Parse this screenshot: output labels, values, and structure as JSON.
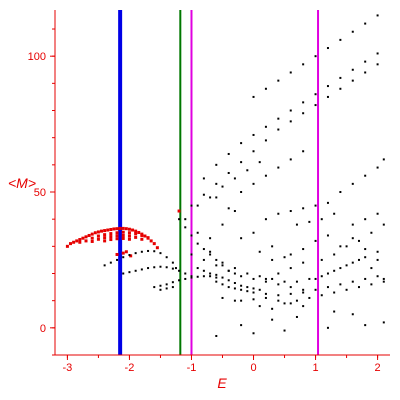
{
  "chart_data": {
    "type": "scatter",
    "xlabel": "E",
    "ylabel": "<M>",
    "xlim": [
      -3.2,
      2.2
    ],
    "ylim": [
      -10,
      117
    ],
    "x_ticks": [
      -3,
      -2,
      -1,
      0,
      1,
      2
    ],
    "y_ticks": [
      0,
      50,
      100
    ],
    "colors": {
      "axis": "#e60000",
      "black_series": "#000000",
      "red_series": "#e60000",
      "blue_line": "#0000e6",
      "green_line": "#007700",
      "magenta_line": "#e000e0"
    },
    "vertical_lines": [
      {
        "x": -2.15,
        "color": "#0000e6",
        "width": 4
      },
      {
        "x": -1.18,
        "color": "#007700",
        "width": 2
      },
      {
        "x": -1.0,
        "color": "#e000e0",
        "width": 2
      },
      {
        "x": 1.04,
        "color": "#e000e0",
        "width": 2
      }
    ],
    "series": [
      {
        "color": "#e60000",
        "points": [
          [
            -3.0,
            30
          ],
          [
            -2.95,
            31
          ],
          [
            -2.9,
            31.5
          ],
          [
            -2.85,
            32
          ],
          [
            -2.8,
            32.5
          ],
          [
            -2.75,
            33
          ],
          [
            -2.7,
            33.5
          ],
          [
            -2.65,
            34
          ],
          [
            -2.6,
            34.5
          ],
          [
            -2.55,
            35
          ],
          [
            -2.5,
            35.3
          ],
          [
            -2.45,
            35.6
          ],
          [
            -2.4,
            35.8
          ],
          [
            -2.35,
            36
          ],
          [
            -2.3,
            36.2
          ],
          [
            -2.25,
            36.4
          ],
          [
            -2.2,
            36.5
          ],
          [
            -2.15,
            36.6
          ],
          [
            -2.1,
            36.6
          ],
          [
            -2.05,
            36.5
          ],
          [
            -2.0,
            36.3
          ],
          [
            -1.95,
            36
          ],
          [
            -1.9,
            35.6
          ],
          [
            -1.85,
            35.1
          ],
          [
            -1.8,
            34.5
          ],
          [
            -1.75,
            33.8
          ],
          [
            -1.7,
            33
          ],
          [
            -1.65,
            32
          ],
          [
            -1.6,
            31
          ],
          [
            -1.55,
            29.5
          ],
          [
            -2.8,
            31.5
          ],
          [
            -2.7,
            32
          ],
          [
            -2.6,
            33
          ],
          [
            -2.5,
            33.8
          ],
          [
            -2.4,
            34.3
          ],
          [
            -2.3,
            34.7
          ],
          [
            -2.2,
            35
          ],
          [
            -2.1,
            35.2
          ],
          [
            -2.0,
            35
          ],
          [
            -1.9,
            34.6
          ],
          [
            -1.8,
            34
          ],
          [
            -1.7,
            33.2
          ],
          [
            -2.6,
            31.8
          ],
          [
            -2.5,
            32.6
          ],
          [
            -2.4,
            33.2
          ],
          [
            -2.3,
            33.6
          ],
          [
            -2.2,
            33.9
          ],
          [
            -2.1,
            34
          ],
          [
            -2.0,
            33.8
          ],
          [
            -1.9,
            33.3
          ],
          [
            -1.8,
            32.6
          ],
          [
            -2.4,
            32
          ],
          [
            -2.3,
            32.5
          ],
          [
            -2.2,
            32.8
          ],
          [
            -2.1,
            32.9
          ],
          [
            -2.0,
            32.6
          ],
          [
            -2.1,
            27.5
          ],
          [
            -2.05,
            28
          ],
          [
            -2.2,
            27
          ],
          [
            -1.98,
            26.5
          ],
          [
            -1.2,
            43
          ]
        ]
      },
      {
        "color": "#000000",
        "points": [
          [
            -2.4,
            23
          ],
          [
            -2.3,
            24
          ],
          [
            -2.2,
            25
          ],
          [
            -2.1,
            26
          ],
          [
            -2.0,
            26.8
          ],
          [
            -1.9,
            27.5
          ],
          [
            -1.8,
            28
          ],
          [
            -1.7,
            28.3
          ],
          [
            -1.6,
            28.2
          ],
          [
            -1.5,
            27.5
          ],
          [
            -1.4,
            26
          ],
          [
            -1.3,
            24
          ],
          [
            -1.25,
            22
          ],
          [
            -2.1,
            20
          ],
          [
            -2.0,
            20.5
          ],
          [
            -1.9,
            21
          ],
          [
            -1.8,
            21.5
          ],
          [
            -1.7,
            22
          ],
          [
            -1.6,
            22.3
          ],
          [
            -1.5,
            22.5
          ],
          [
            -1.4,
            22.3
          ],
          [
            -1.3,
            21.8
          ],
          [
            -1.2,
            21
          ],
          [
            -1.1,
            20
          ],
          [
            -1.0,
            19
          ],
          [
            -1.6,
            15
          ],
          [
            -1.5,
            15.5
          ],
          [
            -1.4,
            16
          ],
          [
            -1.3,
            16.8
          ],
          [
            -1.2,
            17.5
          ],
          [
            -1.1,
            18
          ],
          [
            -1.0,
            18.5
          ],
          [
            -0.9,
            18.8
          ],
          [
            -0.8,
            19
          ],
          [
            -0.7,
            19
          ],
          [
            -0.6,
            18.5
          ],
          [
            -1.5,
            14
          ],
          [
            -1.4,
            14.5
          ],
          [
            -1.3,
            15
          ],
          [
            -0.9,
            22
          ],
          [
            -0.8,
            21
          ],
          [
            -0.7,
            20
          ],
          [
            -0.6,
            19.5
          ],
          [
            -0.5,
            18.5
          ],
          [
            -0.4,
            17.5
          ],
          [
            -0.3,
            16.5
          ],
          [
            -0.2,
            15.5
          ],
          [
            -0.1,
            15
          ],
          [
            0.0,
            14.5
          ],
          [
            0.1,
            14
          ],
          [
            -0.6,
            17
          ],
          [
            -0.5,
            16
          ],
          [
            -0.4,
            15
          ],
          [
            -0.3,
            14.5
          ],
          [
            -0.2,
            14
          ],
          [
            -0.1,
            13.5
          ],
          [
            0.0,
            13
          ],
          [
            0.2,
            12.5
          ],
          [
            0.4,
            12
          ],
          [
            0.6,
            12.5
          ],
          [
            0.8,
            13
          ],
          [
            -0.2,
            10
          ],
          [
            0.0,
            10.5
          ],
          [
            0.2,
            11
          ],
          [
            0.4,
            10
          ],
          [
            0.6,
            9
          ],
          [
            0.8,
            8
          ],
          [
            -0.5,
            11
          ],
          [
            -0.3,
            10
          ],
          [
            0.1,
            8
          ],
          [
            0.3,
            7
          ],
          [
            0.5,
            9
          ],
          [
            0.7,
            10
          ],
          [
            0.9,
            11
          ],
          [
            1.1,
            12
          ],
          [
            1.3,
            13
          ],
          [
            1.5,
            14
          ],
          [
            1.7,
            15
          ],
          [
            1.9,
            16
          ],
          [
            2.1,
            17
          ],
          [
            1.0,
            18
          ],
          [
            1.2,
            20
          ],
          [
            1.4,
            22
          ],
          [
            1.6,
            24
          ],
          [
            1.8,
            26
          ],
          [
            2.0,
            28
          ],
          [
            0.4,
            20
          ],
          [
            0.6,
            22
          ],
          [
            0.8,
            24
          ],
          [
            0.2,
            18
          ],
          [
            1.1,
            25
          ],
          [
            1.3,
            27
          ],
          [
            1.5,
            30
          ],
          [
            1.7,
            32
          ],
          [
            1.9,
            35
          ],
          [
            2.1,
            38
          ],
          [
            -0.6,
            -3
          ],
          [
            -0.2,
            1
          ],
          [
            0.3,
            3
          ],
          [
            0.7,
            4
          ],
          [
            1.3,
            6
          ],
          [
            1.6,
            5
          ],
          [
            2.1,
            2
          ],
          [
            0.0,
            -2
          ],
          [
            0.5,
            -1
          ],
          [
            1.2,
            0
          ],
          [
            1.8,
            1
          ],
          [
            -1.2,
            40
          ],
          [
            -1.1,
            37
          ],
          [
            -1.0,
            34
          ],
          [
            -0.9,
            31
          ],
          [
            -0.8,
            29
          ],
          [
            -0.7,
            27
          ],
          [
            -0.6,
            25
          ],
          [
            -0.5,
            23
          ],
          [
            -0.4,
            21
          ],
          [
            -0.3,
            20
          ],
          [
            -0.7,
            28
          ],
          [
            -0.5,
            24
          ],
          [
            -0.3,
            22
          ],
          [
            -0.1,
            20
          ],
          [
            0.1,
            19
          ],
          [
            0.3,
            18
          ],
          [
            0.5,
            17
          ],
          [
            0.7,
            17
          ],
          [
            0.9,
            18
          ],
          [
            1.1,
            19
          ],
          [
            1.3,
            21
          ],
          [
            1.5,
            23
          ],
          [
            1.7,
            25
          ],
          [
            1.9,
            22
          ],
          [
            2.1,
            18
          ],
          [
            1.4,
            30
          ],
          [
            1.6,
            33
          ],
          [
            1.8,
            29
          ],
          [
            2.0,
            25
          ],
          [
            1.2,
            34
          ],
          [
            1.0,
            32
          ],
          [
            0.8,
            29
          ],
          [
            0.6,
            27
          ],
          [
            1.6,
            38
          ],
          [
            1.8,
            40
          ],
          [
            2.0,
            42
          ],
          [
            -1.0,
            45
          ],
          [
            -0.8,
            49
          ],
          [
            -0.6,
            53
          ],
          [
            -0.4,
            57
          ],
          [
            -0.2,
            61
          ],
          [
            0.0,
            65
          ],
          [
            0.2,
            69
          ],
          [
            0.4,
            73
          ],
          [
            0.6,
            76
          ],
          [
            0.8,
            79
          ],
          [
            1.0,
            82
          ],
          [
            1.2,
            85
          ],
          [
            1.4,
            88
          ],
          [
            1.6,
            91
          ],
          [
            1.8,
            94
          ],
          [
            2.0,
            97
          ],
          [
            -1.1,
            40
          ],
          [
            -0.9,
            45
          ],
          [
            -0.7,
            48
          ],
          [
            -0.5,
            52
          ],
          [
            -0.3,
            55
          ],
          [
            -0.1,
            58
          ],
          [
            0.1,
            61
          ],
          [
            -0.6,
            60
          ],
          [
            -0.4,
            64
          ],
          [
            -0.2,
            68
          ],
          [
            0.0,
            71
          ],
          [
            0.2,
            74
          ],
          [
            0.4,
            77
          ],
          [
            0.6,
            80
          ],
          [
            0.8,
            83
          ],
          [
            1.0,
            86
          ],
          [
            1.2,
            89
          ],
          [
            1.4,
            92
          ],
          [
            1.6,
            95
          ],
          [
            1.8,
            98
          ],
          [
            2.0,
            101
          ],
          [
            0.0,
            85
          ],
          [
            0.2,
            88
          ],
          [
            0.4,
            91
          ],
          [
            0.6,
            94
          ],
          [
            0.8,
            97
          ],
          [
            1.0,
            100
          ],
          [
            1.2,
            103
          ],
          [
            1.4,
            106
          ],
          [
            1.6,
            109
          ],
          [
            1.8,
            112
          ],
          [
            2.0,
            115
          ],
          [
            -0.2,
            50
          ],
          [
            0.0,
            53
          ],
          [
            0.2,
            56
          ],
          [
            0.4,
            59
          ],
          [
            0.6,
            62
          ],
          [
            0.8,
            65
          ],
          [
            -0.4,
            44
          ],
          [
            0.2,
            40
          ],
          [
            0.4,
            42
          ],
          [
            0.6,
            43
          ],
          [
            0.8,
            44
          ],
          [
            1.0,
            45
          ],
          [
            1.2,
            46
          ],
          [
            1.4,
            50
          ],
          [
            1.6,
            53
          ],
          [
            1.8,
            56
          ],
          [
            2.0,
            59
          ],
          [
            2.1,
            62
          ],
          [
            0.7,
            38
          ],
          [
            0.9,
            39
          ],
          [
            1.1,
            40
          ],
          [
            1.3,
            42
          ],
          [
            -0.8,
            55
          ],
          [
            -0.6,
            48
          ],
          [
            -0.3,
            43
          ],
          [
            0.0,
            35
          ],
          [
            0.3,
            30
          ],
          [
            0.5,
            26
          ],
          [
            -0.5,
            38
          ],
          [
            -0.2,
            33
          ],
          [
            0.1,
            28
          ],
          [
            0.3,
            25
          ],
          [
            -0.9,
            35
          ],
          [
            -0.7,
            33
          ],
          [
            -1.0,
            27
          ],
          [
            -0.8,
            25
          ],
          [
            -0.6,
            23
          ],
          [
            -0.4,
            21
          ],
          [
            -0.2,
            19
          ],
          [
            0.0,
            18
          ],
          [
            0.2,
            17
          ],
          [
            0.4,
            16
          ],
          [
            0.6,
            15
          ],
          [
            0.8,
            14
          ],
          [
            1.0,
            14
          ],
          [
            1.2,
            15
          ],
          [
            1.4,
            16
          ],
          [
            1.6,
            17
          ],
          [
            1.8,
            18
          ],
          [
            2.0,
            19
          ]
        ]
      }
    ]
  }
}
